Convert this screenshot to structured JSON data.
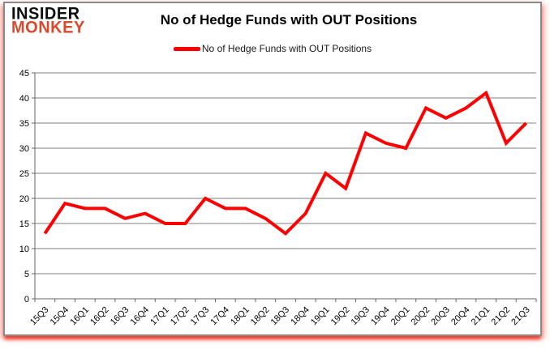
{
  "logo": {
    "line1": "INSIDER",
    "line2": "MONKEY",
    "line1_color": "#0d0d0d",
    "line2_color": "#d9492e"
  },
  "header": {
    "title": "No of Hedge Funds with OUT Positions"
  },
  "legend": {
    "label": "No of Hedge Funds with OUT Positions",
    "line_color": "#ff0000"
  },
  "chart_data": {
    "type": "line",
    "title": "No of Hedge Funds with OUT Positions",
    "categories": [
      "15Q3",
      "15Q4",
      "16Q1",
      "16Q2",
      "16Q3",
      "16Q4",
      "17Q1",
      "17Q2",
      "17Q3",
      "17Q4",
      "18Q1",
      "18Q2",
      "18Q3",
      "18Q4",
      "19Q1",
      "19Q2",
      "19Q3",
      "19Q4",
      "20Q1",
      "20Q2",
      "20Q3",
      "20Q4",
      "21Q1",
      "21Q2",
      "21Q3"
    ],
    "series": [
      {
        "name": "No of Hedge Funds with OUT Positions",
        "color": "#ff0000",
        "values": [
          13,
          19,
          18,
          18,
          16,
          17,
          15,
          15,
          20,
          18,
          18,
          16,
          13,
          17,
          25,
          22,
          33,
          31,
          30,
          38,
          36,
          38,
          41,
          31,
          35
        ]
      }
    ],
    "ylim": [
      0,
      45
    ],
    "ytick_step": 5,
    "xlabel": "",
    "ylabel": "",
    "grid": true,
    "legend_position": "top-center",
    "line_width": 4,
    "colors": {
      "grid": "#7f7f7f",
      "axis": "#666666",
      "tick_label": "#000000",
      "background": "#ffffff"
    }
  }
}
